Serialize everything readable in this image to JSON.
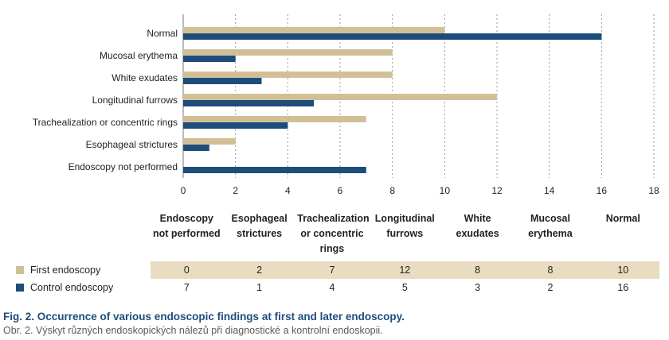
{
  "chart_data": {
    "type": "bar",
    "orientation": "horizontal",
    "categories": [
      "Normal",
      "Mucosal erythema",
      "White exudates",
      "Longitudinal furrows",
      "Trachealization or concentric rings",
      "Esophageal strictures",
      "Endoscopy not performed"
    ],
    "series": [
      {
        "name": "First endoscopy",
        "color": "#d1c097",
        "values": [
          10,
          8,
          8,
          12,
          7,
          2,
          0
        ]
      },
      {
        "name": "Control endoscopy",
        "color": "#1e4d7b",
        "values": [
          16,
          2,
          3,
          5,
          4,
          1,
          7
        ]
      }
    ],
    "xlim": [
      0,
      18
    ],
    "xticks": [
      "0",
      "2",
      "4",
      "6",
      "8",
      "10",
      "12",
      "14",
      "16",
      "18"
    ],
    "grid": "vertical dotted",
    "legend": "data table below chart"
  },
  "table": {
    "headers": [
      "Endoscopy not performed",
      "Esophageal strictures",
      "Trachealization or concentric rings",
      "Longitudinal furrows",
      "White exudates",
      "Mucosal erythema",
      "Normal"
    ],
    "rows": [
      {
        "label": "First endoscopy",
        "color": "#d1c097",
        "values": [
          "0",
          "2",
          "7",
          "12",
          "8",
          "8",
          "10"
        ]
      },
      {
        "label": "Control endoscopy",
        "color": "#1e4d7b",
        "values": [
          "7",
          "1",
          "4",
          "5",
          "3",
          "2",
          "16"
        ]
      }
    ]
  },
  "caption": {
    "title": "Fig. 2. Occurrence of various endoscopic findings at first and later endoscopy.",
    "subtitle": "Obr. 2. Výskyt různých endoskopických nálezů při diagnostické a kontrolní endoskopii."
  }
}
